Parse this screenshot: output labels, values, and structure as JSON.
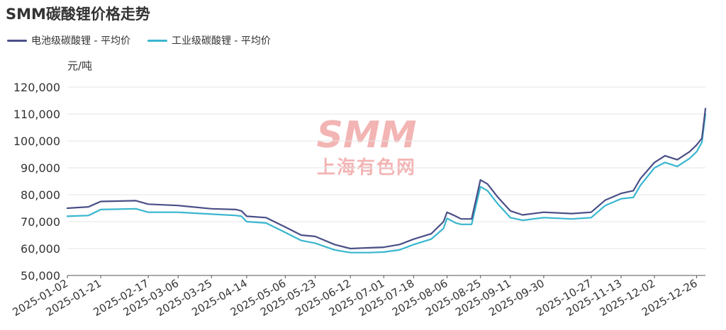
{
  "title": "SMM碳酸锂价格走势",
  "watermark": {
    "logo": "SMM",
    "text": "上海有色网",
    "color": "#f1a8a8"
  },
  "colors": {
    "battery": "#4a4f86",
    "industrial": "#39b6cf",
    "grid": "#e6e6e6",
    "axis": "#555555"
  },
  "chart_data": {
    "type": "line",
    "title": "SMM碳酸锂价格走势",
    "ylabel": "元/吨",
    "ylim": [
      50000,
      120000
    ],
    "yticks": [
      50000,
      60000,
      70000,
      80000,
      90000,
      100000,
      110000,
      120000
    ],
    "ytick_labels": [
      "50,000",
      "60,000",
      "70,000",
      "80,000",
      "90,000",
      "100,000",
      "110,000",
      "120,000"
    ],
    "grid": true,
    "legend": "top-left",
    "xtick_labels": [
      "2025-01-02",
      "2025-01-21",
      "2025-02-17",
      "2025-03-06",
      "2025-03-25",
      "2025-04-14",
      "2025-05-06",
      "2025-05-23",
      "2025-06-12",
      "2025-07-01",
      "2025-07-18",
      "2025-08-06",
      "2025-08-25",
      "2025-09-11",
      "2025-09-30",
      "2025-10-27",
      "2025-11-13",
      "2025-12-02",
      "2025-12-26"
    ],
    "x": [
      "2025-01-02",
      "2025-01-14",
      "2025-01-21",
      "2025-02-10",
      "2025-02-17",
      "2025-03-06",
      "2025-03-25",
      "2025-04-08",
      "2025-04-11",
      "2025-04-14",
      "2025-04-25",
      "2025-05-06",
      "2025-05-15",
      "2025-05-23",
      "2025-06-03",
      "2025-06-12",
      "2025-06-23",
      "2025-07-01",
      "2025-07-10",
      "2025-07-18",
      "2025-07-28",
      "2025-08-04",
      "2025-08-06",
      "2025-08-11",
      "2025-08-14",
      "2025-08-20",
      "2025-08-25",
      "2025-08-29",
      "2025-09-04",
      "2025-09-11",
      "2025-09-18",
      "2025-09-30",
      "2025-10-16",
      "2025-10-27",
      "2025-11-04",
      "2025-11-13",
      "2025-11-20",
      "2025-11-24",
      "2025-12-02",
      "2025-12-08",
      "2025-12-15",
      "2025-12-22",
      "2025-12-26",
      "2025-12-29",
      "2025-12-31"
    ],
    "series": [
      {
        "name": "电池级碳酸锂 - 平均价",
        "color": "#4a4f86",
        "values": [
          75000,
          75500,
          77500,
          77800,
          76500,
          76000,
          74800,
          74500,
          74000,
          72000,
          71500,
          68000,
          65000,
          64500,
          61500,
          60000,
          60300,
          60500,
          61500,
          63500,
          65500,
          70000,
          73500,
          72000,
          71000,
          71000,
          85500,
          84000,
          79000,
          74000,
          72500,
          73500,
          73000,
          73500,
          78000,
          80500,
          81500,
          86000,
          92000,
          94500,
          93000,
          96000,
          98500,
          101000,
          112000
        ]
      },
      {
        "name": "工业级碳酸锂 - 平均价",
        "color": "#39b6cf",
        "values": [
          72000,
          72300,
          74500,
          74800,
          73500,
          73500,
          72800,
          72300,
          72000,
          70000,
          69500,
          66000,
          63000,
          62000,
          59500,
          58500,
          58500,
          58700,
          59500,
          61500,
          63500,
          67500,
          71200,
          69500,
          69000,
          69000,
          83000,
          81500,
          76500,
          71500,
          70500,
          71500,
          71000,
          71500,
          76000,
          78500,
          79000,
          83500,
          90000,
          92000,
          90500,
          93500,
          96000,
          99500,
          110000
        ]
      }
    ]
  }
}
